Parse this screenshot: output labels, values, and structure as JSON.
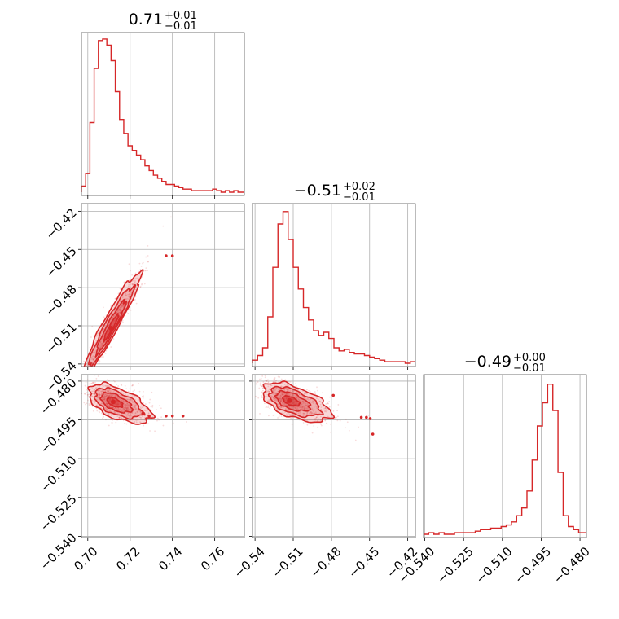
{
  "chart_data": {
    "type": "corner",
    "color": "#d62728",
    "parameters": [
      {
        "title": "0.71",
        "title_upper": "+0.01",
        "title_lower": "−0.01",
        "range": [
          0.697,
          0.774
        ],
        "ticks": [
          0.7,
          0.72,
          0.74,
          0.76
        ],
        "tick_labels": [
          "0.70",
          "0.72",
          "0.74",
          "0.76"
        ],
        "hist": {
          "edges": [
            0.697,
            0.699,
            0.701,
            0.703,
            0.705,
            0.707,
            0.709,
            0.711,
            0.713,
            0.715,
            0.717,
            0.719,
            0.721,
            0.723,
            0.725,
            0.727,
            0.729,
            0.731,
            0.733,
            0.735,
            0.737,
            0.739,
            0.741,
            0.743,
            0.745,
            0.747,
            0.749,
            0.751,
            0.753,
            0.755,
            0.757,
            0.759,
            0.761,
            0.763,
            0.765,
            0.767,
            0.769,
            0.771,
            0.774
          ],
          "counts": [
            0.04,
            0.12,
            0.45,
            0.8,
            0.98,
            0.99,
            0.95,
            0.85,
            0.65,
            0.47,
            0.38,
            0.3,
            0.27,
            0.24,
            0.21,
            0.17,
            0.14,
            0.11,
            0.09,
            0.07,
            0.05,
            0.05,
            0.04,
            0.03,
            0.02,
            0.02,
            0.01,
            0.01,
            0.01,
            0.01,
            0.01,
            0.02,
            0.01,
            0.0,
            0.01,
            0.0,
            0.01,
            0.0
          ]
        }
      },
      {
        "title": "−0.51",
        "title_upper": "+0.02",
        "title_lower": "−0.01",
        "range": [
          -0.542,
          -0.414
        ],
        "ticks": [
          -0.54,
          -0.51,
          -0.48,
          -0.45,
          -0.42
        ],
        "tick_labels": [
          "−0.54",
          "−0.51",
          "−0.48",
          "−0.45",
          "−0.42"
        ],
        "hist": {
          "edges": [
            -0.542,
            -0.538,
            -0.534,
            -0.53,
            -0.526,
            -0.522,
            -0.518,
            -0.514,
            -0.51,
            -0.506,
            -0.502,
            -0.498,
            -0.494,
            -0.49,
            -0.486,
            -0.482,
            -0.478,
            -0.474,
            -0.47,
            -0.466,
            -0.462,
            -0.458,
            -0.454,
            -0.45,
            -0.446,
            -0.442,
            -0.438,
            -0.434,
            -0.43,
            -0.426,
            -0.422,
            -0.418,
            -0.414
          ],
          "counts": [
            0.02,
            0.05,
            0.1,
            0.3,
            0.62,
            0.9,
            0.98,
            0.8,
            0.62,
            0.48,
            0.36,
            0.28,
            0.21,
            0.18,
            0.2,
            0.16,
            0.1,
            0.08,
            0.09,
            0.07,
            0.06,
            0.06,
            0.05,
            0.04,
            0.03,
            0.02,
            0.01,
            0.01,
            0.01,
            0.01,
            0.0,
            0.01
          ]
        }
      },
      {
        "title": "−0.49",
        "title_upper": "+0.00",
        "title_lower": "−0.01",
        "range": [
          -0.5405,
          -0.4775
        ],
        "ticks": [
          -0.54,
          -0.525,
          -0.51,
          -0.495,
          -0.48
        ],
        "tick_labels": [
          "−0.540",
          "−0.525",
          "−0.510",
          "−0.495",
          "−0.480"
        ],
        "hist": {
          "edges": [
            -0.5405,
            -0.5385,
            -0.5365,
            -0.5345,
            -0.5325,
            -0.5305,
            -0.5285,
            -0.5265,
            -0.5245,
            -0.5225,
            -0.5205,
            -0.5185,
            -0.5165,
            -0.5145,
            -0.5125,
            -0.5105,
            -0.5085,
            -0.5065,
            -0.5045,
            -0.5025,
            -0.5005,
            -0.4985,
            -0.4965,
            -0.4945,
            -0.4925,
            -0.4905,
            -0.4885,
            -0.4865,
            -0.4845,
            -0.4825,
            -0.4805,
            -0.4775
          ],
          "counts": [
            0.0,
            0.01,
            0.0,
            0.01,
            0.0,
            0.0,
            0.01,
            0.01,
            0.01,
            0.01,
            0.02,
            0.03,
            0.03,
            0.04,
            0.04,
            0.05,
            0.06,
            0.08,
            0.12,
            0.17,
            0.28,
            0.48,
            0.7,
            0.85,
            0.97,
            0.8,
            0.4,
            0.12,
            0.05,
            0.03,
            0.01
          ]
        }
      }
    ],
    "pairs": [
      {
        "row": 1,
        "col": 0,
        "center": [
          0.711,
          -0.512
        ],
        "cov": [
          [
            4.9e-05,
            0.00014
          ],
          [
            0.00014,
            0.00042
          ]
        ],
        "stretch": [
          1.0,
          1.8
        ],
        "outliers": [
          [
            0.737,
            -0.455
          ],
          [
            0.74,
            -0.455
          ]
        ]
      },
      {
        "row": 2,
        "col": 0,
        "center": [
          0.712,
          -0.488
        ],
        "cov": [
          [
            3.2e-05,
            -9.5e-06
          ],
          [
            -9.5e-06,
            1.25e-05
          ]
        ],
        "stretch": [
          1.6,
          1.0
        ],
        "outliers": [
          [
            0.737,
            -0.4935
          ],
          [
            0.74,
            -0.4935
          ],
          [
            0.745,
            -0.4935
          ],
          [
            0.729,
            -0.4935
          ],
          [
            0.726,
            -0.4925
          ]
        ]
      },
      {
        "row": 2,
        "col": 1,
        "center": [
          -0.513,
          -0.4875
        ],
        "cov": [
          [
            0.000105,
            -1.65e-05
          ],
          [
            -1.65e-05,
            1.25e-05
          ]
        ],
        "stretch": [
          1.6,
          1.0
        ],
        "outliers": [
          [
            -0.4785,
            -0.4855
          ],
          [
            -0.4565,
            -0.494
          ],
          [
            -0.4525,
            -0.494
          ],
          [
            -0.4495,
            -0.4945
          ],
          [
            -0.4475,
            -0.5005
          ]
        ]
      }
    ],
    "levels": [
      0.5,
      1.0,
      1.5,
      2.0
    ],
    "scatter_points": 900
  }
}
